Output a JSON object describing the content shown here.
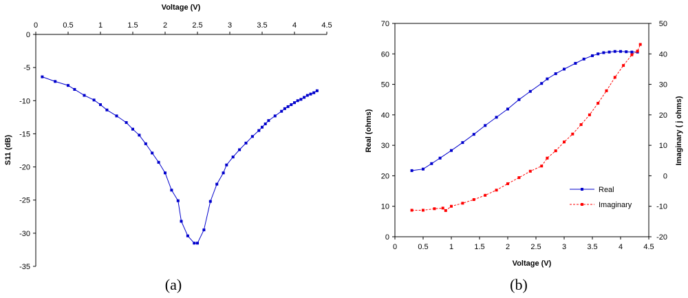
{
  "chart_data": [
    {
      "type": "line",
      "panel_label": "(a)",
      "xlabel": "Voltage (V)",
      "ylabel": "S11 (dB)",
      "xlim": [
        0,
        4.5
      ],
      "ylim": [
        -35,
        0
      ],
      "x_axis_position": "top",
      "xticks": [
        0,
        0.5,
        1,
        1.5,
        2,
        2.5,
        3,
        3.5,
        4,
        4.5
      ],
      "yticks": [
        0,
        -5,
        -10,
        -15,
        -20,
        -25,
        -30,
        -35
      ],
      "grid": false,
      "colors": {
        "series": "#0000cc"
      },
      "series": [
        {
          "x": [
            0.1,
            0.3,
            0.5,
            0.6,
            0.75,
            0.9,
            1.0,
            1.1,
            1.25,
            1.4,
            1.5,
            1.6,
            1.7,
            1.8,
            1.9,
            2.0,
            2.1,
            2.2,
            2.25,
            2.35,
            2.45,
            2.5,
            2.6,
            2.7,
            2.8,
            2.9,
            2.95,
            3.05,
            3.15,
            3.25,
            3.35,
            3.45,
            3.5,
            3.55,
            3.6,
            3.7,
            3.8,
            3.85,
            3.9,
            3.95,
            4.0,
            4.05,
            4.1,
            4.15,
            4.2,
            4.25,
            4.3,
            4.35
          ],
          "values": [
            -6.4,
            -7.1,
            -7.7,
            -8.3,
            -9.2,
            -9.9,
            -10.6,
            -11.4,
            -12.3,
            -13.3,
            -14.3,
            -15.2,
            -16.5,
            -17.9,
            -19.3,
            -20.9,
            -23.5,
            -25.1,
            -28.2,
            -30.4,
            -31.5,
            -31.5,
            -29.5,
            -25.2,
            -22.6,
            -20.9,
            -19.7,
            -18.5,
            -17.4,
            -16.4,
            -15.4,
            -14.5,
            -14.0,
            -13.5,
            -13.0,
            -12.3,
            -11.6,
            -11.2,
            -10.9,
            -10.6,
            -10.3,
            -10.0,
            -9.8,
            -9.5,
            -9.2,
            -9.0,
            -8.8,
            -8.5
          ]
        }
      ]
    },
    {
      "type": "line",
      "panel_label": "(b)",
      "xlabel": "Voltage (V)",
      "ylabel": "Real (ohms)",
      "y2label": "Imaginary ( j ohms)",
      "xlim": [
        0,
        4.5
      ],
      "ylim": [
        0,
        70
      ],
      "y2lim": [
        -20,
        50
      ],
      "xticks": [
        0,
        0.5,
        1,
        1.5,
        2,
        2.5,
        3,
        3.5,
        4,
        4.5
      ],
      "yticks": [
        0,
        10,
        20,
        30,
        40,
        50,
        60,
        70
      ],
      "y2ticks": [
        -20,
        -10,
        0,
        10,
        20,
        30,
        40,
        50
      ],
      "grid": false,
      "legend_position": "bottom-right",
      "series": [
        {
          "name": "Real",
          "axis": "left",
          "color": "#0000cc",
          "style": "solid",
          "x": [
            0.3,
            0.5,
            0.65,
            0.8,
            1.0,
            1.2,
            1.4,
            1.6,
            1.8,
            2.0,
            2.2,
            2.4,
            2.6,
            2.7,
            2.85,
            3.0,
            3.2,
            3.35,
            3.5,
            3.6,
            3.7,
            3.8,
            3.9,
            4.0,
            4.1,
            4.2,
            4.3
          ],
          "values": [
            21.7,
            22.2,
            24.0,
            25.8,
            28.3,
            30.9,
            33.6,
            36.5,
            39.2,
            41.9,
            45.0,
            47.7,
            50.3,
            51.8,
            53.5,
            55.0,
            56.9,
            58.3,
            59.4,
            60.0,
            60.4,
            60.6,
            60.8,
            60.8,
            60.7,
            60.6,
            60.6
          ]
        },
        {
          "name": "Imaginary",
          "axis": "right",
          "color": "#ff0000",
          "style": "dashed",
          "x": [
            0.3,
            0.5,
            0.7,
            0.85,
            0.9,
            1.0,
            1.2,
            1.4,
            1.6,
            1.8,
            2.0,
            2.2,
            2.4,
            2.6,
            2.7,
            2.85,
            3.0,
            3.15,
            3.3,
            3.45,
            3.6,
            3.75,
            3.9,
            4.05,
            4.2,
            4.3,
            4.35
          ],
          "values": [
            -11.3,
            -11.3,
            -10.8,
            -10.6,
            -11.4,
            -10.0,
            -9.0,
            -7.8,
            -6.4,
            -4.7,
            -2.6,
            -0.6,
            1.5,
            3.2,
            5.8,
            8.2,
            11.1,
            13.7,
            16.8,
            20.0,
            23.8,
            27.9,
            32.3,
            36.2,
            39.7,
            40.9,
            43.1
          ]
        }
      ]
    }
  ]
}
